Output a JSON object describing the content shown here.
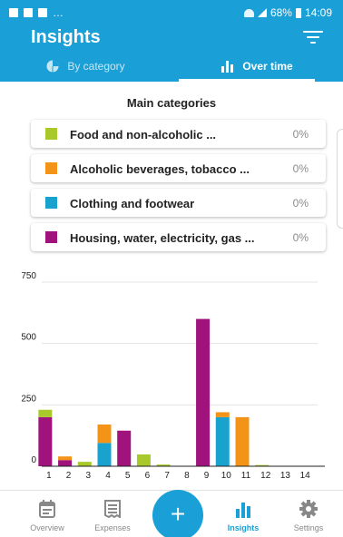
{
  "status_bar": {
    "battery": "68%",
    "time": "14:09"
  },
  "app": {
    "title": "Insights"
  },
  "tabs": [
    {
      "label": "By category",
      "active": false
    },
    {
      "label": "Over time",
      "active": true
    }
  ],
  "section_title": "Main categories",
  "categories": [
    {
      "label": "Food and non-alcoholic ...",
      "percent": "0%",
      "color": "#a8c929"
    },
    {
      "label": "Alcoholic beverages, tobacco ...",
      "percent": "0%",
      "color": "#f39418"
    },
    {
      "label": "Clothing and footwear",
      "percent": "0%",
      "color": "#1aa2cf"
    },
    {
      "label": "Housing, water, electricity, gas ...",
      "percent": "0%",
      "color": "#a0127c"
    }
  ],
  "fab_label": "+",
  "bottom_nav": [
    {
      "label": "Overview",
      "icon": "calendar-icon",
      "active": false
    },
    {
      "label": "Expenses",
      "icon": "receipt-icon",
      "active": false
    },
    {
      "label": "Insights",
      "icon": "bar-chart-icon",
      "active": true
    },
    {
      "label": "Settings",
      "icon": "gear-icon",
      "active": false
    }
  ],
  "chart_data": {
    "type": "bar",
    "stacked": true,
    "categories": [
      "1",
      "2",
      "3",
      "4",
      "5",
      "6",
      "7",
      "8",
      "9",
      "10",
      "11",
      "12",
      "13",
      "14"
    ],
    "yticks": [
      0,
      250,
      500,
      750
    ],
    "ylim": [
      0,
      750
    ],
    "grid": true,
    "series": [
      {
        "color": "#a0127c",
        "values": [
          200,
          25,
          0,
          0,
          145,
          0,
          0,
          0,
          600,
          0,
          0,
          0,
          0,
          0
        ]
      },
      {
        "color": "#1aa2cf",
        "values": [
          0,
          0,
          0,
          95,
          0,
          0,
          0,
          0,
          0,
          200,
          0,
          0,
          0,
          0
        ]
      },
      {
        "color": "#f39418",
        "values": [
          0,
          15,
          0,
          75,
          0,
          0,
          0,
          0,
          0,
          20,
          200,
          0,
          0,
          0
        ]
      },
      {
        "color": "#a8c929",
        "values": [
          30,
          0,
          18,
          0,
          0,
          48,
          7,
          0,
          0,
          0,
          0,
          5,
          0,
          0
        ]
      }
    ]
  }
}
